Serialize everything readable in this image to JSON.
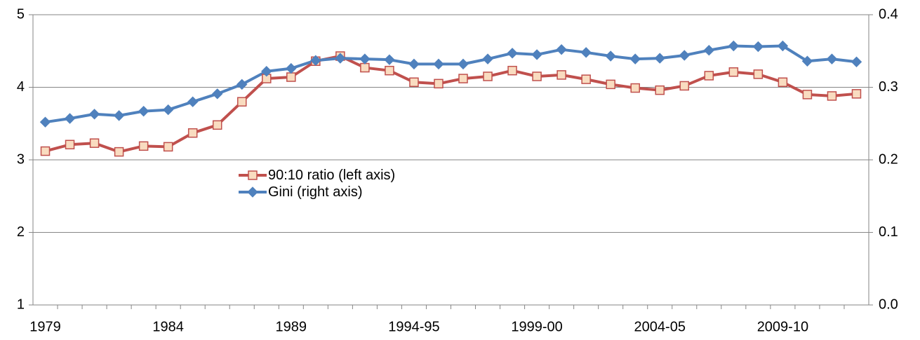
{
  "chart_data": {
    "type": "line",
    "categories": [
      "1979",
      null,
      null,
      null,
      null,
      "1984",
      null,
      null,
      null,
      null,
      "1989",
      null,
      null,
      null,
      null,
      "1994-95",
      null,
      null,
      null,
      null,
      "1999-00",
      null,
      null,
      null,
      null,
      "2004-05",
      null,
      null,
      null,
      null,
      "2009-10",
      null,
      null,
      null
    ],
    "series": [
      {
        "name": "90:10 ratio (left axis)",
        "color": "#c0504d",
        "marker": "square",
        "marker_fill": "#f9dcc0",
        "axis": "y",
        "values": [
          3.12,
          3.21,
          3.23,
          3.11,
          3.19,
          3.18,
          3.37,
          3.48,
          3.8,
          4.12,
          4.14,
          4.36,
          4.43,
          4.27,
          4.23,
          4.07,
          4.05,
          4.12,
          4.15,
          4.23,
          4.15,
          4.17,
          4.11,
          4.04,
          3.99,
          3.96,
          4.02,
          4.16,
          4.21,
          4.18,
          4.07,
          3.9,
          3.88,
          3.91
        ]
      },
      {
        "name": "Gini (right axis)",
        "color": "#4f81bd",
        "marker": "diamond",
        "marker_fill": "#4f81bd",
        "axis": "y2",
        "values": [
          0.252,
          0.257,
          0.263,
          0.261,
          0.267,
          0.269,
          0.28,
          0.291,
          0.304,
          0.322,
          0.326,
          0.337,
          0.34,
          0.339,
          0.338,
          0.332,
          0.332,
          0.332,
          0.339,
          0.347,
          0.345,
          0.352,
          0.348,
          0.343,
          0.339,
          0.34,
          0.344,
          0.351,
          0.357,
          0.356,
          0.357,
          0.336,
          0.339,
          0.335
        ]
      }
    ],
    "ylim": [
      1,
      5
    ],
    "yticks": [
      1,
      2,
      3,
      4,
      5
    ],
    "y2lim": [
      0,
      0.4
    ],
    "y2ticks": [
      {
        "value": 0,
        "label": "0.0"
      },
      0.1,
      0.2,
      0.3,
      0.4
    ],
    "grid": true,
    "legend_position": "center"
  }
}
